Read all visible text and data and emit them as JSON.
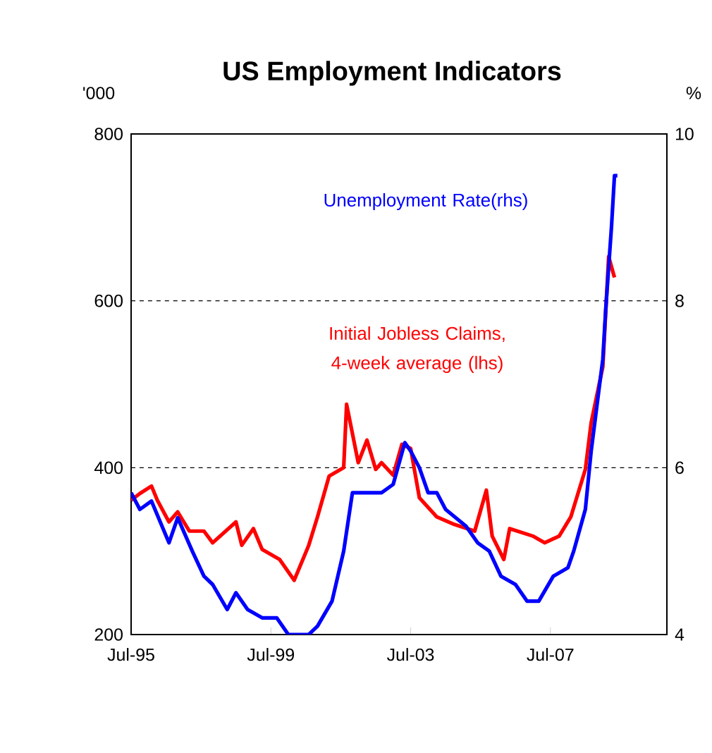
{
  "chart_data": {
    "type": "line",
    "title": "US Employment Indicators",
    "ylabel": "'000",
    "y2label": "%",
    "xlim": [
      "1995-07",
      "2010-11"
    ],
    "xticks": [
      {
        "value": "1995-07",
        "label": "Jul-95"
      },
      {
        "value": "1999-07",
        "label": "Jul-99"
      },
      {
        "value": "2003-07",
        "label": "Jul-03"
      },
      {
        "value": "2007-07",
        "label": "Jul-07"
      }
    ],
    "ylim": [
      200,
      800
    ],
    "yticks": [
      200,
      400,
      600,
      800
    ],
    "y2lim": [
      4,
      10
    ],
    "y2ticks": [
      4,
      6,
      8,
      10
    ],
    "grid": "y",
    "marker": "none",
    "line_style": "solid",
    "series": [
      {
        "name": "Initial Jobless Claims, 4-week average (lhs)",
        "color": "#ff0000",
        "x": [
          "1995-07",
          "1995-10",
          "1996-02",
          "1996-04",
          "1996-08",
          "1996-11",
          "1997-03",
          "1997-08",
          "1997-11",
          "1998-07",
          "1998-09",
          "1999-01",
          "1999-04",
          "1999-10",
          "2000-03",
          "2000-08",
          "2000-11",
          "2001-03",
          "2001-08",
          "2001-09",
          "2002-01",
          "2002-04",
          "2002-07",
          "2002-09",
          "2003-01",
          "2003-04",
          "2003-07",
          "2003-10",
          "2004-04",
          "2004-10",
          "2005-05",
          "2005-09",
          "2005-11",
          "2006-03",
          "2006-05",
          "2007-01",
          "2007-05",
          "2007-10",
          "2008-02",
          "2008-07",
          "2008-09",
          "2009-01",
          "2009-03",
          "2009-05"
        ],
        "values": [
          361,
          369,
          378,
          361,
          335,
          347,
          324,
          324,
          310,
          335,
          307,
          327,
          302,
          290,
          265,
          307,
          341,
          390,
          400,
          476,
          406,
          433,
          398,
          406,
          391,
          428,
          423,
          364,
          341,
          332,
          324,
          373,
          318,
          290,
          327,
          318,
          310,
          318,
          341,
          398,
          454,
          521,
          653,
          628
        ]
      },
      {
        "name": "Unemployment Rate(rhs)",
        "color": "#0000ff",
        "axis": "y2",
        "x": [
          "1995-07",
          "1995-10",
          "1996-02",
          "1996-08",
          "1996-11",
          "1997-04",
          "1997-08",
          "1997-11",
          "1998-04",
          "1998-07",
          "1998-11",
          "1999-04",
          "1999-09",
          "2000-01",
          "2000-08",
          "2000-11",
          "2001-04",
          "2001-08",
          "2001-11",
          "2002-03",
          "2002-09",
          "2003-01",
          "2003-05",
          "2003-07",
          "2003-10",
          "2004-01",
          "2004-04",
          "2004-07",
          "2005-02",
          "2005-06",
          "2005-10",
          "2006-02",
          "2006-07",
          "2006-11",
          "2007-03",
          "2007-08",
          "2008-01",
          "2008-03",
          "2008-07",
          "2008-09",
          "2009-01",
          "2009-02",
          "2009-04",
          "2009-05",
          "2009-06"
        ],
        "values": [
          5.7,
          5.5,
          5.6,
          5.1,
          5.4,
          5.0,
          4.7,
          4.6,
          4.3,
          4.5,
          4.3,
          4.2,
          4.2,
          4.0,
          4.0,
          4.1,
          4.4,
          5.0,
          5.7,
          5.7,
          5.7,
          5.8,
          6.3,
          6.2,
          6.0,
          5.7,
          5.7,
          5.5,
          5.3,
          5.1,
          5.0,
          4.7,
          4.6,
          4.4,
          4.4,
          4.7,
          4.8,
          5.0,
          5.5,
          6.2,
          7.3,
          7.9,
          8.9,
          9.5,
          9.5
        ]
      }
    ]
  }
}
